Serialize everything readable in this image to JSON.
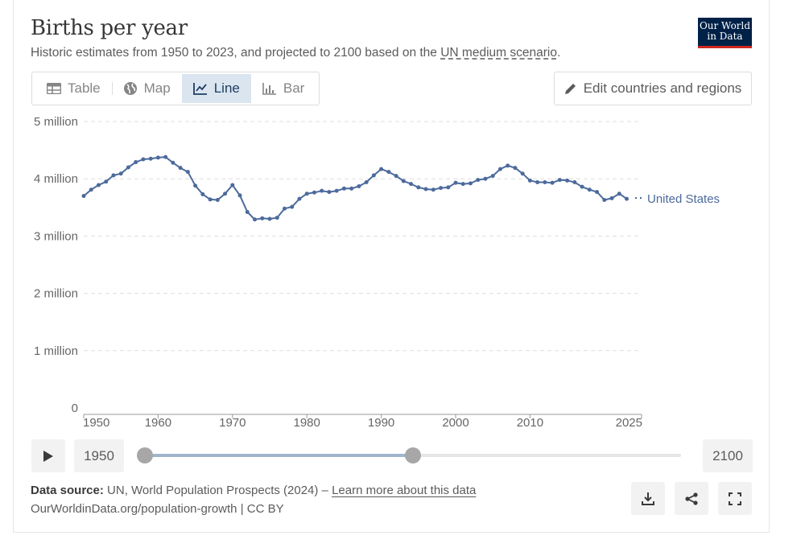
{
  "header": {
    "title": "Births per year",
    "subtitle_prefix": "Historic estimates from 1950 to 2023, and projected to 2100 based on the ",
    "subtitle_link": "UN medium scenario",
    "subtitle_suffix": ".",
    "logo_line1": "Our World",
    "logo_line2": "in Data"
  },
  "tabs": [
    {
      "label": "Table",
      "icon": "table-icon",
      "active": false
    },
    {
      "label": "Map",
      "icon": "globe-icon",
      "active": false
    },
    {
      "label": "Line",
      "icon": "line-chart-icon",
      "active": true
    },
    {
      "label": "Bar",
      "icon": "bar-chart-icon",
      "active": false
    }
  ],
  "edit_button": {
    "label": "Edit countries and regions",
    "icon": "pencil-icon"
  },
  "timeline": {
    "start_label": "1950",
    "end_label": "2100",
    "range_start_year": 1950,
    "range_end_year": 2025,
    "min_year": 1950,
    "max_year": 2100
  },
  "footer": {
    "source_label": "Data source:",
    "source_text": " UN, World Population Prospects (2024) – ",
    "learn_more": "Learn more about this data",
    "url": "OurWorldinData.org/population-growth | CC BY"
  },
  "colors": {
    "series": "#4c6a9c",
    "accent": "#ce261e",
    "brand": "#002147"
  },
  "chart_data": {
    "type": "line",
    "title": "Births per year",
    "xlabel": "",
    "ylabel": "",
    "xlim": [
      1950,
      2025
    ],
    "ylim": [
      0,
      5000000
    ],
    "x_ticks": [
      "1950",
      "1960",
      "1970",
      "1980",
      "1990",
      "2000",
      "2010",
      "2025"
    ],
    "x_tick_values": [
      1950,
      1960,
      1970,
      1980,
      1990,
      2000,
      2010,
      2025
    ],
    "y_ticks": [
      "0",
      "1 million",
      "2 million",
      "3 million",
      "4 million",
      "5 million"
    ],
    "y_tick_values": [
      0,
      1000000,
      2000000,
      3000000,
      4000000,
      5000000
    ],
    "grid": true,
    "series": [
      {
        "name": "United States",
        "color": "#4c6a9c",
        "x": [
          1950,
          1951,
          1952,
          1953,
          1954,
          1955,
          1956,
          1957,
          1958,
          1959,
          1960,
          1961,
          1962,
          1963,
          1964,
          1965,
          1966,
          1967,
          1968,
          1969,
          1970,
          1971,
          1972,
          1973,
          1974,
          1975,
          1976,
          1977,
          1978,
          1979,
          1980,
          1981,
          1982,
          1983,
          1984,
          1985,
          1986,
          1987,
          1988,
          1989,
          1990,
          1991,
          1992,
          1993,
          1994,
          1995,
          1996,
          1997,
          1998,
          1999,
          2000,
          2001,
          2002,
          2003,
          2004,
          2005,
          2006,
          2007,
          2008,
          2009,
          2010,
          2011,
          2012,
          2013,
          2014,
          2015,
          2016,
          2017,
          2018,
          2019,
          2020,
          2021,
          2022,
          2023
        ],
        "values": [
          3700000,
          3810000,
          3890000,
          3950000,
          4060000,
          4090000,
          4200000,
          4290000,
          4340000,
          4350000,
          4370000,
          4380000,
          4280000,
          4190000,
          4120000,
          3880000,
          3730000,
          3640000,
          3630000,
          3740000,
          3890000,
          3710000,
          3420000,
          3290000,
          3310000,
          3300000,
          3320000,
          3480000,
          3510000,
          3650000,
          3740000,
          3760000,
          3790000,
          3770000,
          3790000,
          3830000,
          3830000,
          3870000,
          3940000,
          4060000,
          4170000,
          4120000,
          4050000,
          3960000,
          3910000,
          3850000,
          3820000,
          3810000,
          3840000,
          3850000,
          3930000,
          3910000,
          3920000,
          3980000,
          4000000,
          4050000,
          4170000,
          4230000,
          4190000,
          4090000,
          3970000,
          3940000,
          3940000,
          3930000,
          3980000,
          3970000,
          3940000,
          3860000,
          3810000,
          3770000,
          3630000,
          3660000,
          3740000,
          3650000
        ]
      }
    ]
  }
}
